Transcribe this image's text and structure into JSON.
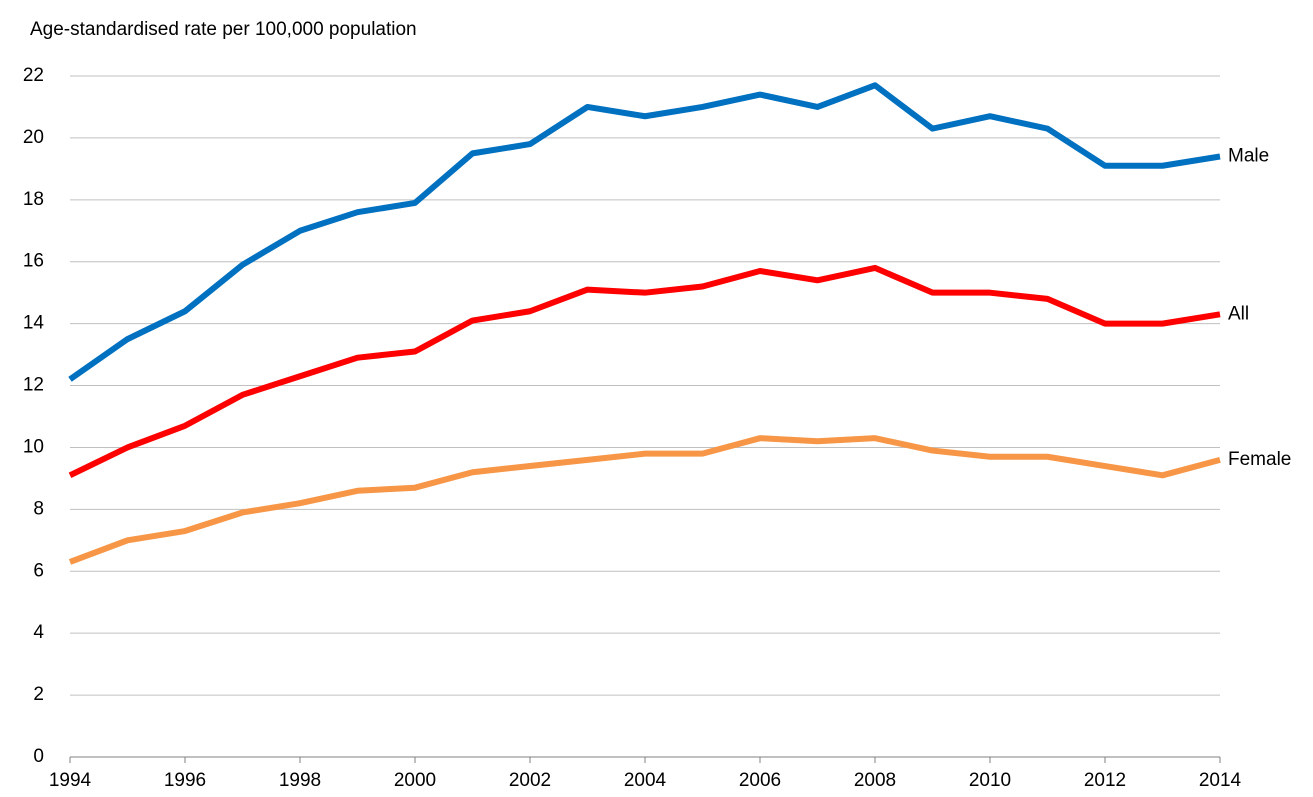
{
  "chart_data": {
    "type": "line",
    "y_label": "Age-standardised rate per 100,000 population",
    "x": [
      1994,
      1995,
      1996,
      1997,
      1998,
      1999,
      2000,
      2001,
      2002,
      2003,
      2004,
      2005,
      2006,
      2007,
      2008,
      2009,
      2010,
      2011,
      2012,
      2013,
      2014
    ],
    "series": [
      {
        "name": "Male",
        "color": "#0070c0",
        "values": [
          12.2,
          13.5,
          14.4,
          15.9,
          17.0,
          17.6,
          17.9,
          19.5,
          19.8,
          21.0,
          20.7,
          21.0,
          21.4,
          21.0,
          21.7,
          20.3,
          20.7,
          20.3,
          19.1,
          19.1,
          19.4
        ]
      },
      {
        "name": "All",
        "color": "#ff0000",
        "values": [
          9.1,
          10.0,
          10.7,
          11.7,
          12.3,
          12.9,
          13.1,
          14.1,
          14.4,
          15.1,
          15.0,
          15.2,
          15.7,
          15.4,
          15.8,
          15.0,
          15.0,
          14.8,
          14.0,
          14.0,
          14.3
        ]
      },
      {
        "name": "Female",
        "color": "#f79646",
        "values": [
          6.3,
          7.0,
          7.3,
          7.9,
          8.2,
          8.6,
          8.7,
          9.2,
          9.4,
          9.6,
          9.8,
          9.8,
          10.3,
          10.2,
          10.3,
          9.9,
          9.7,
          9.7,
          9.4,
          9.1,
          9.6
        ]
      }
    ],
    "xlim": [
      1994,
      2014
    ],
    "xticks": [
      1994,
      1996,
      1998,
      2000,
      2002,
      2004,
      2006,
      2008,
      2010,
      2012,
      2014
    ],
    "ylim": [
      0,
      22
    ],
    "yticks": [
      0,
      2,
      4,
      6,
      8,
      10,
      12,
      14,
      16,
      18,
      20,
      22
    ],
    "grid": true
  }
}
